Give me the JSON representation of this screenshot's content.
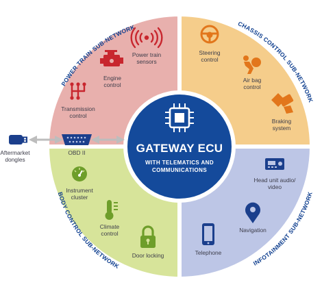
{
  "hub": {
    "title": "GATEWAY ECU",
    "subtitle_line1": "WITH TELEMATICS AND",
    "subtitle_line2": "COMMUNICATIONS"
  },
  "quadrants": {
    "power_train": {
      "title": "POWER TRAIN SUB-NETWORK",
      "color": "#e8b0ad",
      "icon_color": "#c8262e",
      "items": {
        "sensors": {
          "line1": "Power train",
          "line2": "sensors",
          "icon": "antenna-signal-icon"
        },
        "engine": {
          "line1": "Engine",
          "line2": "control",
          "icon": "engine-icon"
        },
        "transmission": {
          "line1": "Transmission",
          "line2": "control",
          "icon": "gear-shift-icon"
        }
      }
    },
    "chassis": {
      "title": "CHASSIS CONTROL SUB-NETWORK",
      "color": "#f5cd8b",
      "icon_color": "#e2761b",
      "items": {
        "steering": {
          "line1": "Steering",
          "line2": "control",
          "icon": "steering-wheel-icon"
        },
        "airbag": {
          "line1": "Air bag",
          "line2": "control",
          "icon": "airbag-icon"
        },
        "braking": {
          "line1": "Braking",
          "line2": "system",
          "icon": "brake-pedal-icon"
        }
      }
    },
    "body": {
      "title": "BODY CONTROL SUB-NETWORK",
      "color": "#d7e49a",
      "icon_color": "#6e9e2a",
      "items": {
        "instrument": {
          "line1": "Instrument",
          "line2": "cluster",
          "icon": "gauge-icon"
        },
        "climate": {
          "line1": "Climate",
          "line2": "control",
          "icon": "thermometer-icon"
        },
        "door": {
          "line1": "Door locking",
          "icon": "padlock-icon"
        }
      }
    },
    "infotainment": {
      "title": "INFOTAINMENT SUB-NETWORK",
      "color": "#bdc6e6",
      "icon_color": "#1b3f8c",
      "items": {
        "headunit": {
          "line1": "Head unit audio/",
          "line2": "video",
          "icon": "radio-icon"
        },
        "navigation": {
          "line1": "Navigation",
          "icon": "map-pin-icon"
        },
        "telephone": {
          "line1": "Telephone",
          "icon": "smartphone-icon"
        }
      }
    }
  },
  "obd": {
    "label": "OBD II",
    "icon": "obd-connector-icon"
  },
  "dongle": {
    "line1": "Aftermarket",
    "line2": "dongles",
    "icon": "usb-dongle-icon"
  },
  "colors": {
    "hub": "#144a9b",
    "hub_ring": "#ffffff",
    "title_text": "#0f3f8f",
    "arrow": "#bdbdbd",
    "icon_blue": "#1b3f8c"
  }
}
